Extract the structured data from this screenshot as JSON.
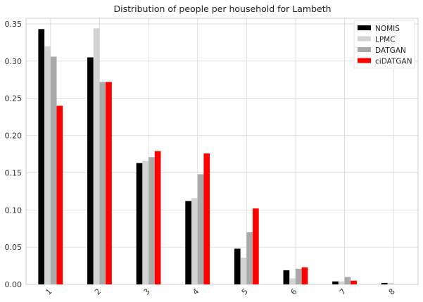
{
  "chart_data": {
    "type": "bar",
    "title": "Distribution of people per household for Lambeth",
    "xlabel": "",
    "ylabel": "",
    "categories": [
      "1",
      "2",
      "3",
      "4",
      "5",
      "6",
      "7",
      "8"
    ],
    "series": [
      {
        "name": "NOMIS",
        "color": "#000000",
        "values": [
          0.343,
          0.305,
          0.163,
          0.112,
          0.048,
          0.019,
          0.004,
          0.002
        ]
      },
      {
        "name": "LPMC",
        "color": "#d3d3d3",
        "values": [
          0.32,
          0.344,
          0.166,
          0.116,
          0.036,
          0.008,
          0.004,
          0.002
        ]
      },
      {
        "name": "DATGAN",
        "color": "#a9a9a9",
        "values": [
          0.306,
          0.272,
          0.171,
          0.148,
          0.07,
          0.021,
          0.01,
          0.0
        ]
      },
      {
        "name": "ciDATGAN",
        "color": "#ff0000",
        "values": [
          0.24,
          0.272,
          0.179,
          0.176,
          0.102,
          0.023,
          0.005,
          0.0
        ]
      }
    ],
    "ylim": [
      0,
      0.3575
    ],
    "yticks": [
      "0.00",
      "0.05",
      "0.10",
      "0.15",
      "0.20",
      "0.25",
      "0.30",
      "0.35"
    ],
    "grid": true,
    "legend_position": "top-right"
  }
}
